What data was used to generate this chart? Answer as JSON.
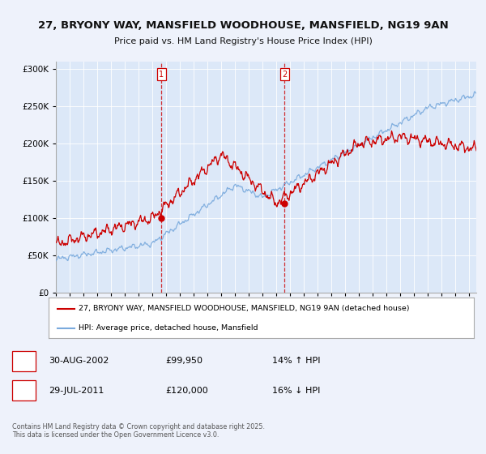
{
  "title_line1": "27, BRYONY WAY, MANSFIELD WOODHOUSE, MANSFIELD, NG19 9AN",
  "title_line2": "Price paid vs. HM Land Registry's House Price Index (HPI)",
  "background_color": "#eef2fb",
  "plot_bg_color": "#dce8f8",
  "legend_label_red": "27, BRYONY WAY, MANSFIELD WOODHOUSE, MANSFIELD, NG19 9AN (detached house)",
  "legend_label_blue": "HPI: Average price, detached house, Mansfield",
  "purchase1_date": "30-AUG-2002",
  "purchase1_price": 99950,
  "purchase1_hpi": "14% ↑ HPI",
  "purchase2_date": "29-JUL-2011",
  "purchase2_price": 120000,
  "purchase2_hpi": "16% ↓ HPI",
  "footnote": "Contains HM Land Registry data © Crown copyright and database right 2025.\nThis data is licensed under the Open Government Licence v3.0.",
  "ylim": [
    0,
    310000
  ],
  "red_color": "#cc0000",
  "blue_color": "#7aaadd",
  "purchase1_x": 2002.66,
  "purchase2_x": 2011.58,
  "purchase1_y": 99950,
  "purchase2_y": 120000,
  "xmin": 1995.0,
  "xmax": 2025.5
}
